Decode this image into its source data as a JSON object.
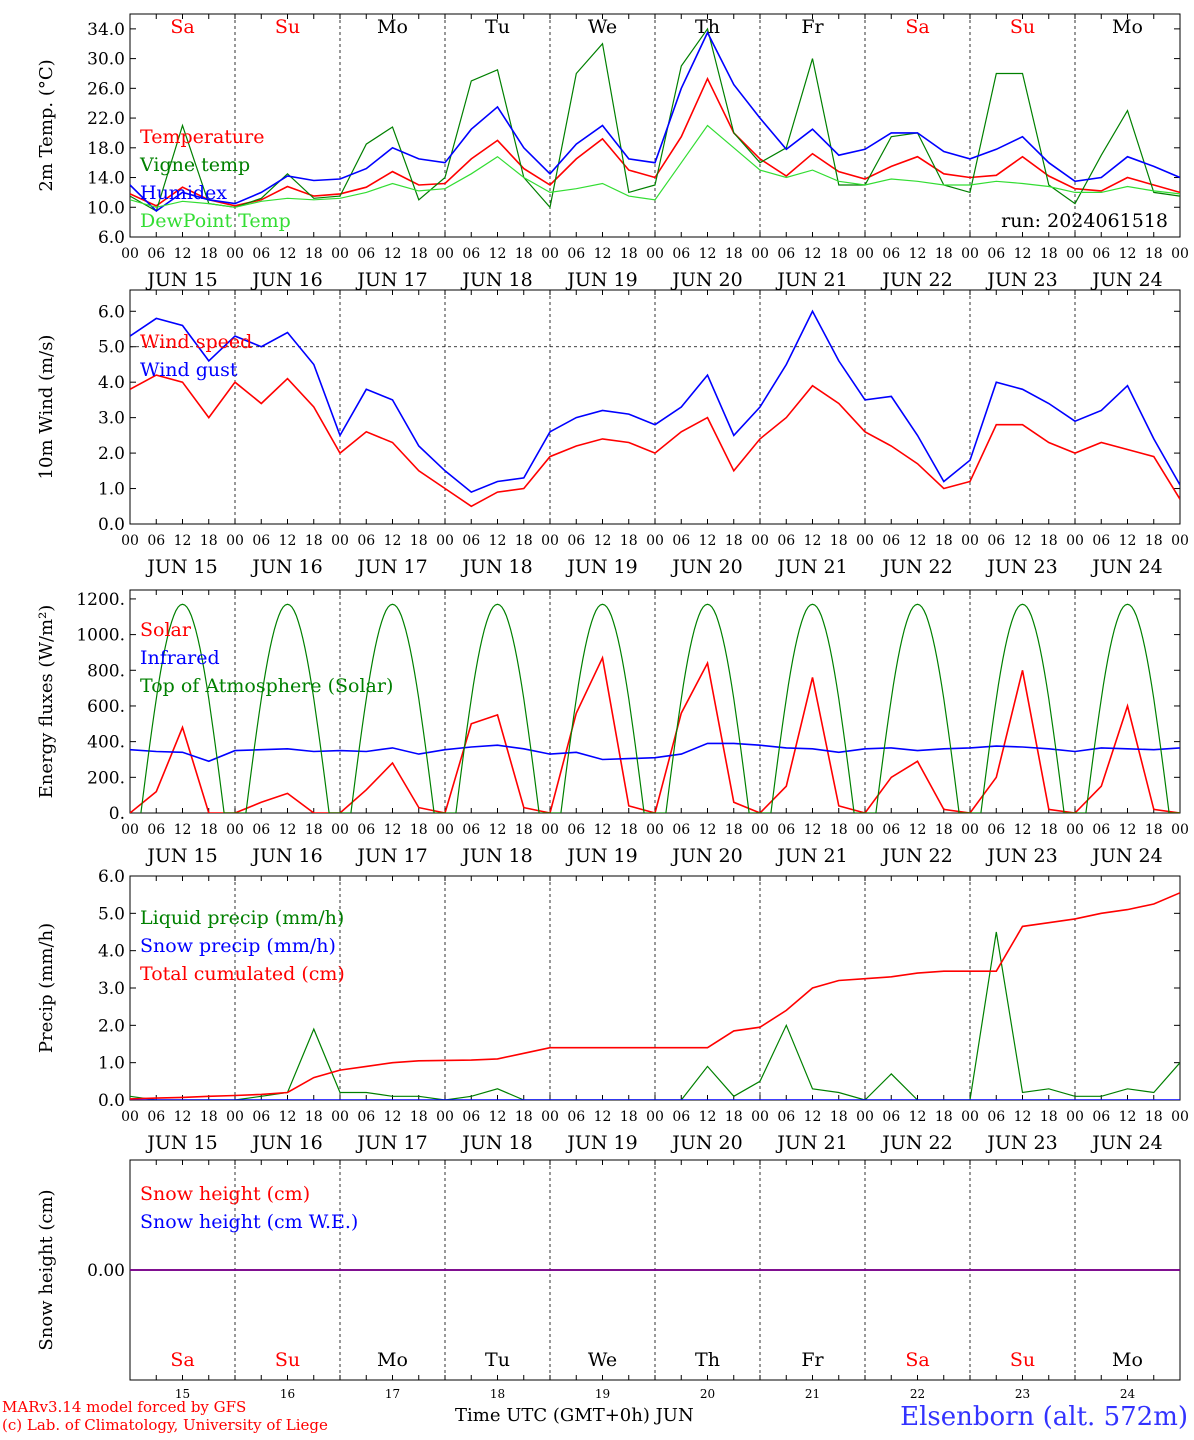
{
  "footer": {
    "credit_line1": "MARv3.14 model forced by GFS",
    "credit_line2": "(c) Lab. of Climatology, University of Liege",
    "time_axis_label": "Time UTC (GMT+0h) JUN",
    "station": "Elsenborn (alt. 572m)"
  },
  "colors": {
    "red": "#ff0000",
    "green": "#008000",
    "blue": "#0000ff",
    "lightgreen": "#33dd33",
    "purple": "#800080",
    "weekend": "#ff0000",
    "weekday": "#000000"
  },
  "days": [
    {
      "abbr": "Sa",
      "date": "JUN 15",
      "num": "15",
      "weekend": true
    },
    {
      "abbr": "Su",
      "date": "JUN 16",
      "num": "16",
      "weekend": true
    },
    {
      "abbr": "Mo",
      "date": "JUN 17",
      "num": "17",
      "weekend": false
    },
    {
      "abbr": "Tu",
      "date": "JUN 18",
      "num": "18",
      "weekend": false
    },
    {
      "abbr": "We",
      "date": "JUN 19",
      "num": "19",
      "weekend": false
    },
    {
      "abbr": "Th",
      "date": "JUN 20",
      "num": "20",
      "weekend": false
    },
    {
      "abbr": "Fr",
      "date": "JUN 21",
      "num": "21",
      "weekend": false
    },
    {
      "abbr": "Sa",
      "date": "JUN 22",
      "num": "22",
      "weekend": true
    },
    {
      "abbr": "Su",
      "date": "JUN 23",
      "num": "23",
      "weekend": true
    },
    {
      "abbr": "Mo",
      "date": "JUN 24",
      "num": "24",
      "weekend": false
    }
  ],
  "hour_ticks": [
    "00",
    "06",
    "12",
    "18"
  ],
  "chart_data": [
    {
      "type": "line",
      "ylabel": "2m Temp. (°C)",
      "ylim": [
        6,
        36
      ],
      "yticks": [
        "6.0",
        "10.0",
        "14.0",
        "18.0",
        "22.0",
        "26.0",
        "30.0",
        "34.0"
      ],
      "ytick_values": [
        6,
        10,
        14,
        18,
        22,
        26,
        30,
        34
      ],
      "annotation": "run: 2024061518",
      "x_hours": [
        0,
        6,
        12,
        18,
        24,
        30,
        36,
        42,
        48,
        54,
        60,
        66,
        72,
        78,
        84,
        90,
        96,
        102,
        108,
        114,
        120,
        126,
        132,
        138,
        144,
        150,
        156,
        162,
        168,
        174,
        180,
        186,
        192,
        198,
        204,
        210,
        216,
        222,
        228,
        234,
        240
      ],
      "series": [
        {
          "name": "Temperature",
          "color": "red",
          "values": [
            11.8,
            10.2,
            12.7,
            11.0,
            10.2,
            11.0,
            12.8,
            11.5,
            11.8,
            12.7,
            14.8,
            13.0,
            13.2,
            16.5,
            19.0,
            15.2,
            13.0,
            16.5,
            19.2,
            15.0,
            14.0,
            19.5,
            27.3,
            20.0,
            16.5,
            14.2,
            17.2,
            14.8,
            13.8,
            15.5,
            16.8,
            14.5,
            14.0,
            14.3,
            16.8,
            14.2,
            12.5,
            12.2,
            14.0,
            13.0,
            12.0
          ]
        },
        {
          "name": "Vigne temp",
          "color": "green",
          "values": [
            11.5,
            9.5,
            21.0,
            10.5,
            10.0,
            11.2,
            14.5,
            11.2,
            11.5,
            18.5,
            20.8,
            11.0,
            14.0,
            27.0,
            28.5,
            14.0,
            10.0,
            28.0,
            32.0,
            12.0,
            13.0,
            29.0,
            34.0,
            20.0,
            16.0,
            18.0,
            30.0,
            13.0,
            13.0,
            19.5,
            20.0,
            13.0,
            12.0,
            28.0,
            28.0,
            13.0,
            10.5,
            17.0,
            23.0,
            12.0,
            11.5
          ]
        },
        {
          "name": "Humidex",
          "color": "blue",
          "values": [
            13.0,
            9.5,
            12.0,
            11.0,
            10.5,
            12.0,
            14.2,
            13.6,
            13.8,
            15.2,
            18.0,
            16.5,
            16.0,
            20.5,
            23.5,
            18.0,
            14.5,
            18.5,
            21.0,
            16.5,
            16.0,
            26.0,
            33.5,
            26.5,
            22.0,
            17.8,
            20.5,
            17.0,
            17.8,
            20.0,
            20.0,
            17.5,
            16.5,
            17.8,
            19.5,
            16.0,
            13.5,
            14.0,
            16.8,
            15.5,
            14.0
          ]
        },
        {
          "name": "DewPoint Temp",
          "color": "lightgreen",
          "values": [
            11.0,
            10.0,
            10.8,
            10.5,
            10.0,
            10.8,
            11.2,
            11.0,
            11.2,
            12.0,
            13.2,
            12.2,
            12.5,
            14.5,
            16.8,
            14.0,
            12.0,
            12.5,
            13.2,
            11.5,
            11.0,
            16.0,
            21.0,
            18.0,
            15.0,
            14.0,
            15.0,
            13.5,
            13.0,
            13.8,
            13.5,
            13.0,
            13.0,
            13.5,
            13.2,
            12.8,
            12.0,
            12.0,
            12.8,
            12.2,
            11.8
          ]
        }
      ]
    },
    {
      "type": "line",
      "ylabel": "10m Wind (m/s)",
      "ylim": [
        0,
        6.6
      ],
      "yticks": [
        "0.0",
        "1.0",
        "2.0",
        "3.0",
        "4.0",
        "5.0",
        "6.0"
      ],
      "ytick_values": [
        0,
        1,
        2,
        3,
        4,
        5,
        6
      ],
      "ref_line": 5,
      "x_hours": [
        0,
        6,
        12,
        18,
        24,
        30,
        36,
        42,
        48,
        54,
        60,
        66,
        72,
        78,
        84,
        90,
        96,
        102,
        108,
        114,
        120,
        126,
        132,
        138,
        144,
        150,
        156,
        162,
        168,
        174,
        180,
        186,
        192,
        198,
        204,
        210,
        216,
        222,
        228,
        234,
        240
      ],
      "series": [
        {
          "name": "Wind speed",
          "color": "red",
          "values": [
            3.8,
            4.2,
            4.0,
            3.0,
            4.0,
            3.4,
            4.1,
            3.3,
            2.0,
            2.6,
            2.3,
            1.5,
            1.0,
            0.5,
            0.9,
            1.0,
            1.9,
            2.2,
            2.4,
            2.3,
            2.0,
            2.6,
            3.0,
            1.5,
            2.4,
            3.0,
            3.9,
            3.4,
            2.6,
            2.2,
            1.7,
            1.0,
            1.2,
            2.8,
            2.8,
            2.3,
            2.0,
            2.3,
            2.1,
            1.9,
            0.7
          ]
        },
        {
          "name": "Wind gust",
          "color": "blue",
          "values": [
            5.3,
            5.8,
            5.6,
            4.6,
            5.3,
            5.0,
            5.4,
            4.5,
            2.5,
            3.8,
            3.5,
            2.2,
            1.5,
            0.9,
            1.2,
            1.3,
            2.6,
            3.0,
            3.2,
            3.1,
            2.8,
            3.3,
            4.2,
            2.5,
            3.3,
            4.5,
            6.0,
            4.6,
            3.5,
            3.6,
            2.5,
            1.2,
            1.8,
            4.0,
            3.8,
            3.4,
            2.9,
            3.2,
            3.9,
            2.4,
            1.1
          ]
        }
      ]
    },
    {
      "type": "line",
      "ylabel": "Energy fluxes (W/m²)",
      "ylim": [
        0,
        1250
      ],
      "yticks": [
        "0.",
        "200.",
        "400.",
        "600.",
        "800.",
        "1000.",
        "1200."
      ],
      "ytick_values": [
        0,
        200,
        400,
        600,
        800,
        1000,
        1200
      ],
      "x_hours": [
        0,
        6,
        12,
        18,
        24,
        30,
        36,
        42,
        48,
        54,
        60,
        66,
        72,
        78,
        84,
        90,
        96,
        102,
        108,
        114,
        120,
        126,
        132,
        138,
        144,
        150,
        156,
        162,
        168,
        174,
        180,
        186,
        192,
        198,
        204,
        210,
        216,
        222,
        228,
        234,
        240
      ],
      "series": [
        {
          "name": "Solar",
          "color": "red",
          "values": [
            0,
            120,
            480,
            0,
            0,
            60,
            110,
            0,
            0,
            130,
            280,
            30,
            0,
            500,
            550,
            30,
            0,
            560,
            870,
            40,
            0,
            560,
            840,
            60,
            0,
            150,
            760,
            40,
            0,
            200,
            290,
            20,
            0,
            200,
            800,
            20,
            0,
            150,
            600,
            20,
            0
          ]
        },
        {
          "name": "Infrared",
          "color": "blue",
          "values": [
            355,
            345,
            340,
            290,
            350,
            355,
            360,
            345,
            350,
            345,
            365,
            330,
            355,
            370,
            380,
            360,
            330,
            340,
            300,
            305,
            310,
            330,
            390,
            390,
            380,
            365,
            360,
            340,
            360,
            365,
            350,
            360,
            365,
            375,
            370,
            360,
            345,
            365,
            360,
            355,
            365
          ]
        },
        {
          "name": "Top of Atmosphere (Solar)",
          "color": "green",
          "period_bell": true,
          "peak": 1170,
          "values": []
        }
      ]
    },
    {
      "type": "line",
      "ylabel": "Precip (mm/h)",
      "ylim": [
        0,
        6
      ],
      "yticks": [
        "0.0",
        "1.0",
        "2.0",
        "3.0",
        "4.0",
        "5.0",
        "6.0"
      ],
      "ytick_values": [
        0,
        1,
        2,
        3,
        4,
        5,
        6
      ],
      "x_hours": [
        0,
        6,
        12,
        18,
        24,
        30,
        36,
        42,
        48,
        54,
        60,
        66,
        72,
        78,
        84,
        90,
        96,
        102,
        108,
        114,
        120,
        126,
        132,
        138,
        144,
        150,
        156,
        162,
        168,
        174,
        180,
        186,
        192,
        198,
        204,
        210,
        216,
        222,
        228,
        234,
        240
      ],
      "series": [
        {
          "name": "Liquid precip (mm/h)",
          "color": "green",
          "values": [
            0.1,
            0.0,
            0.0,
            0.0,
            0.0,
            0.1,
            0.2,
            1.9,
            0.2,
            0.2,
            0.1,
            0.1,
            0.0,
            0.1,
            0.3,
            0.0,
            0.0,
            0.0,
            0.0,
            0.0,
            0.0,
            0.0,
            0.9,
            0.1,
            0.5,
            2.0,
            0.3,
            0.2,
            0.0,
            0.7,
            0.0,
            0.0,
            0.0,
            4.5,
            0.2,
            0.3,
            0.1,
            0.1,
            0.3,
            0.2,
            1.0
          ]
        },
        {
          "name": "Snow precip (mm/h)",
          "color": "blue",
          "values": [
            0,
            0,
            0,
            0,
            0,
            0,
            0,
            0,
            0,
            0,
            0,
            0,
            0,
            0,
            0,
            0,
            0,
            0,
            0,
            0,
            0,
            0,
            0,
            0,
            0,
            0,
            0,
            0,
            0,
            0,
            0,
            0,
            0,
            0,
            0,
            0,
            0,
            0,
            0,
            0,
            0
          ]
        },
        {
          "name": "Total cumulated (cm)",
          "color": "red",
          "values": [
            0.03,
            0.05,
            0.07,
            0.1,
            0.12,
            0.15,
            0.2,
            0.6,
            0.8,
            0.9,
            1.0,
            1.05,
            1.06,
            1.07,
            1.1,
            1.25,
            1.4,
            1.4,
            1.4,
            1.4,
            1.4,
            1.4,
            1.4,
            1.85,
            1.95,
            2.4,
            3.0,
            3.2,
            3.25,
            3.3,
            3.4,
            3.45,
            3.45,
            3.45,
            4.65,
            4.75,
            4.85,
            5.0,
            5.1,
            5.25,
            5.55
          ]
        }
      ]
    },
    {
      "type": "line",
      "ylabel": "Snow height (cm)",
      "ylim": [
        -1,
        1
      ],
      "yticks": [
        "0.00"
      ],
      "ytick_values": [
        0
      ],
      "x_hours": [
        0,
        240
      ],
      "series": [
        {
          "name": "Snow height (cm)",
          "color": "red",
          "values": [
            0,
            0
          ]
        },
        {
          "name": "Snow height (cm W.E.)",
          "color": "blue",
          "values": [
            0,
            0
          ]
        }
      ]
    }
  ]
}
